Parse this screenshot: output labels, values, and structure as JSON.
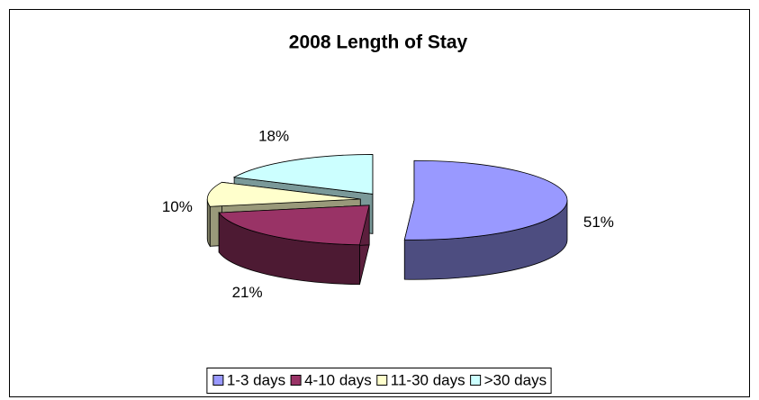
{
  "chart_data": {
    "type": "pie3d",
    "title": "2008 Length of Stay",
    "categories": [
      "1-3 days",
      "4-10 days",
      "11-30 days",
      ">30 days"
    ],
    "values": [
      51,
      21,
      10,
      18
    ],
    "value_labels": [
      "51%",
      "21%",
      "10%",
      "18%"
    ],
    "colors": [
      "#9999ff",
      "#993366",
      "#ffffcc",
      "#ccffff"
    ],
    "legend": "bottom"
  }
}
